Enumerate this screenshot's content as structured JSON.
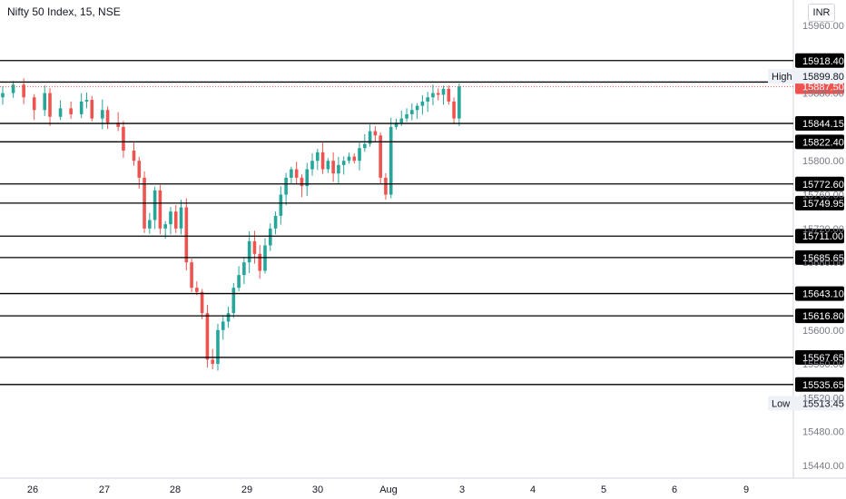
{
  "header": {
    "title": "Nifty 50 Index, 15, NSE",
    "currency": "INR"
  },
  "chart_data": {
    "type": "candlestick",
    "title": "Nifty 50 Index, 15, NSE",
    "ylim": [
      15425,
      15990
    ],
    "y_ticks": [
      "15960.00",
      "15880.00",
      "15800.00",
      "15760.00",
      "15720.00",
      "15680.00",
      "15600.00",
      "15560.00",
      "15520.00",
      "15480.00",
      "15440.00"
    ],
    "x_labels": [
      "26",
      "27",
      "28",
      "29",
      "30",
      "Aug",
      "3",
      "4",
      "5",
      "6",
      "9"
    ],
    "horizontal_levels": [
      15918.4,
      15893.05,
      15844.15,
      15822.4,
      15772.6,
      15749.95,
      15711.0,
      15685.65,
      15643.1,
      15616.8,
      15567.65,
      15535.65
    ],
    "horizontal_level_labels": [
      "15918.40",
      "15893.05",
      "15844.15",
      "15822.40",
      "15772.60",
      "15749.95",
      "15711.00",
      "15685.65",
      "15643.10",
      "15616.80",
      "15567.65",
      "15535.65"
    ],
    "high": {
      "label": "High",
      "value": "15899.80"
    },
    "low": {
      "label": "Low",
      "value": "15513.45"
    },
    "last_price": "15887.50",
    "colors": {
      "up": "#26a69a",
      "down": "#ef5350",
      "level_line": "#000000",
      "last_price": "#ef5350"
    },
    "price_path": [
      [
        0,
        15880
      ],
      [
        2,
        15890
      ],
      [
        4,
        15875
      ],
      [
        6,
        15860
      ],
      [
        8,
        15880
      ],
      [
        9,
        15852
      ],
      [
        11,
        15862
      ],
      [
        13,
        15855
      ],
      [
        15,
        15870
      ],
      [
        16,
        15872
      ],
      [
        17,
        15850
      ],
      [
        19,
        15860
      ],
      [
        20,
        15845
      ],
      [
        22,
        15840
      ],
      [
        23,
        15812
      ],
      [
        25,
        15800
      ],
      [
        26,
        15780
      ],
      [
        27,
        15720
      ],
      [
        28,
        15730
      ],
      [
        29,
        15765
      ],
      [
        30,
        15720
      ],
      [
        31,
        15725
      ],
      [
        32,
        15740
      ],
      [
        33,
        15720
      ],
      [
        34,
        15745
      ],
      [
        35,
        15680
      ],
      [
        36,
        15650
      ],
      [
        37,
        15645
      ],
      [
        38,
        15620
      ],
      [
        39,
        15565
      ],
      [
        40,
        15560
      ],
      [
        41,
        15600
      ],
      [
        42,
        15610
      ],
      [
        43,
        15620
      ],
      [
        44,
        15650
      ],
      [
        45,
        15665
      ],
      [
        46,
        15680
      ],
      [
        47,
        15705
      ],
      [
        48,
        15690
      ],
      [
        49,
        15670
      ],
      [
        50,
        15700
      ],
      [
        51,
        15720
      ],
      [
        52,
        15735
      ],
      [
        53,
        15760
      ],
      [
        54,
        15780
      ],
      [
        55,
        15790
      ],
      [
        56,
        15780
      ],
      [
        57,
        15770
      ],
      [
        58,
        15790
      ],
      [
        59,
        15800
      ],
      [
        60,
        15810
      ],
      [
        61,
        15790
      ],
      [
        62,
        15800
      ],
      [
        63,
        15785
      ],
      [
        64,
        15795
      ],
      [
        65,
        15800
      ],
      [
        66,
        15805
      ],
      [
        67,
        15800
      ],
      [
        68,
        15815
      ],
      [
        69,
        15820
      ],
      [
        70,
        15835
      ],
      [
        71,
        15830
      ],
      [
        72,
        15780
      ],
      [
        73,
        15760
      ],
      [
        74,
        15840
      ],
      [
        75,
        15845
      ],
      [
        76,
        15850
      ],
      [
        77,
        15855
      ],
      [
        78,
        15860
      ],
      [
        79,
        15865
      ],
      [
        80,
        15870
      ],
      [
        81,
        15875
      ],
      [
        82,
        15880
      ],
      [
        83,
        15878
      ],
      [
        84,
        15885
      ],
      [
        85,
        15870
      ],
      [
        86,
        15850
      ],
      [
        87,
        15888
      ]
    ]
  }
}
